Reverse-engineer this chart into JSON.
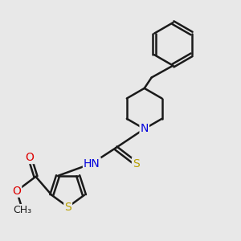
{
  "background_color": "#e8e8e8",
  "bond_color": "#1a1a1a",
  "bond_width": 1.8,
  "atom_colors": {
    "S": "#b8a000",
    "N": "#0000dd",
    "O": "#dd0000",
    "C": "#1a1a1a",
    "H": "#1a1a1a"
  },
  "font_size": 10,
  "fig_width": 3.0,
  "fig_height": 3.0,
  "dpi": 100
}
